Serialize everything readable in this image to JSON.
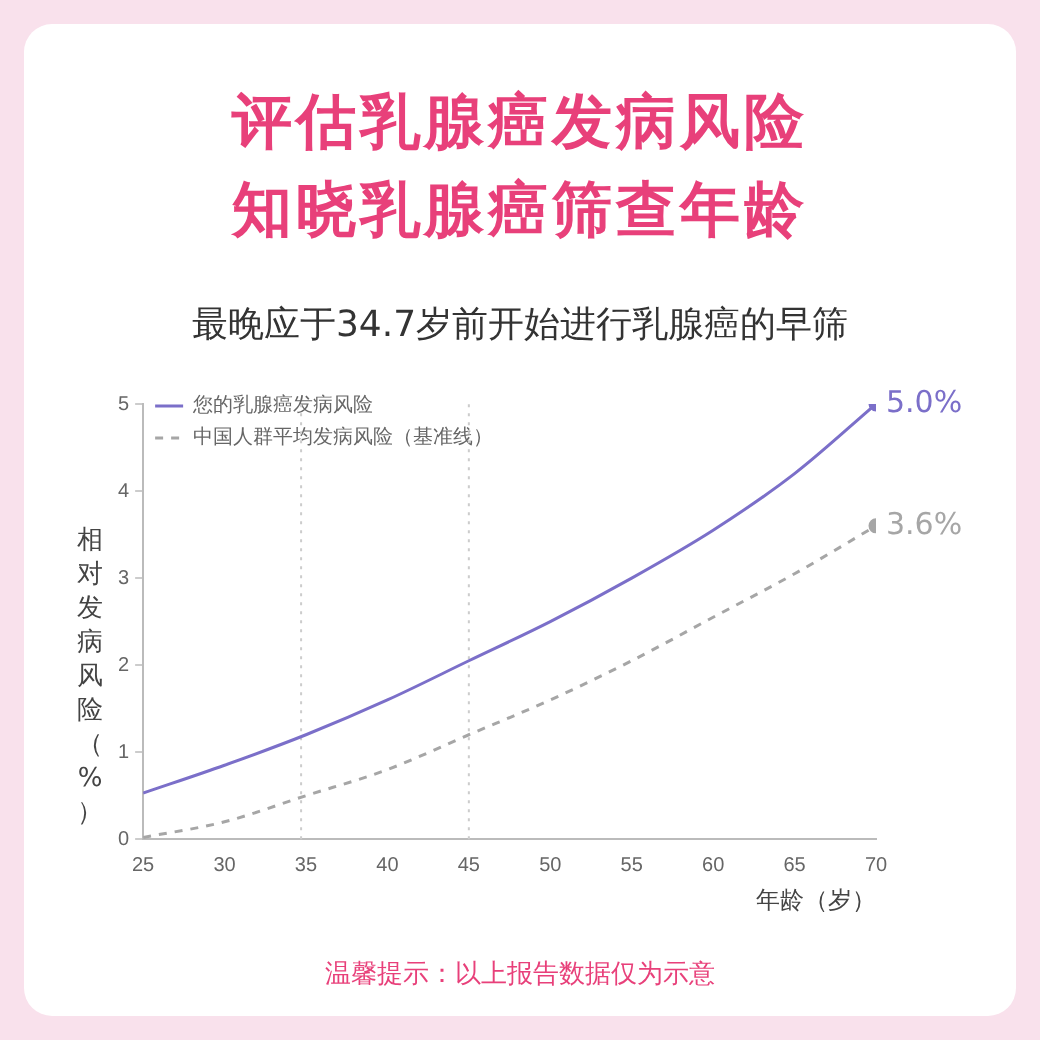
{
  "chart_data": {
    "type": "line",
    "title": "评估乳腺癌发病风险知晓乳腺癌筛查年龄",
    "subtitle": "最晚应于34.7岁前开始进行乳腺癌的早筛",
    "xlabel": "年龄（岁）",
    "ylabel": "相对发病风险（%）",
    "x": [
      25,
      30,
      35,
      40,
      45,
      50,
      55,
      60,
      65,
      70
    ],
    "series": [
      {
        "name": "您的乳腺癌发病风险",
        "color": "#7b6fc9",
        "line_style": "solid",
        "values": [
          0.53,
          0.85,
          1.2,
          1.6,
          2.05,
          2.5,
          3.0,
          3.55,
          4.2,
          5.0
        ],
        "value_labels": [
          null,
          null,
          null,
          null,
          null,
          null,
          null,
          null,
          null,
          "5.0%"
        ]
      },
      {
        "name": "中国人群平均发病风险（基准线）",
        "color": "#a6a6a6",
        "line_style": "dashed",
        "values": [
          0.02,
          0.2,
          0.5,
          0.8,
          1.2,
          1.6,
          2.05,
          2.55,
          3.05,
          3.6
        ],
        "value_labels": [
          null,
          null,
          null,
          null,
          null,
          null,
          null,
          null,
          null,
          "3.6%"
        ]
      }
    ],
    "xlim": [
      25,
      70
    ],
    "xticks": [
      25,
      30,
      35,
      40,
      45,
      50,
      55,
      60,
      65,
      70
    ],
    "ylim": [
      0,
      5
    ],
    "yticks": [
      0,
      1,
      2,
      3,
      4,
      5
    ],
    "ref_lines": [
      {
        "axis": "x",
        "value": 34.7,
        "color": "#cccccc",
        "line_style": "dotted"
      },
      {
        "axis": "x",
        "value": 45,
        "color": "#cccccc",
        "line_style": "dotted"
      }
    ],
    "grid": false,
    "legend": "top left",
    "annotations": [
      "温馨提示：以上报告数据仅为示意"
    ]
  }
}
